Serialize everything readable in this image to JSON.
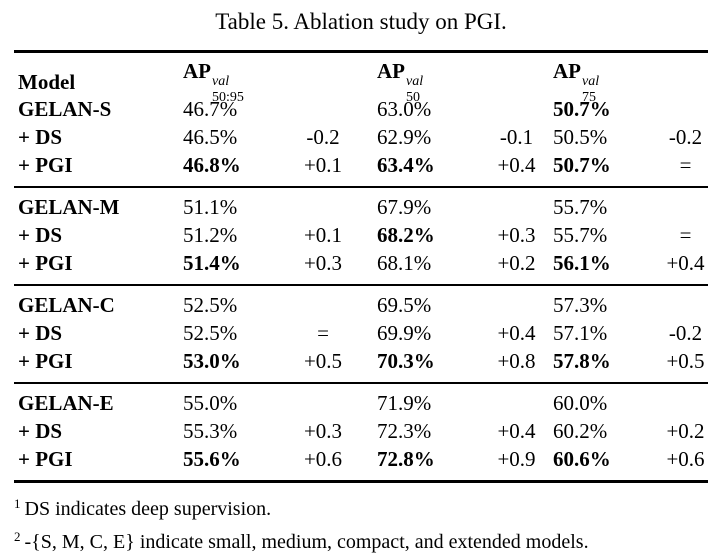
{
  "title": "Table 5. Ablation study on PGI.",
  "table": {
    "header": {
      "model": "Model",
      "cols": [
        {
          "base": "AP",
          "sup": "val",
          "sub": "50:95"
        },
        {
          "base": "AP",
          "sup": "val",
          "sub": "50"
        },
        {
          "base": "AP",
          "sup": "val",
          "sub": "75"
        }
      ]
    },
    "groups": [
      {
        "rows": [
          {
            "model": "GELAN-S",
            "ap5095": "46.7%",
            "d5095": "",
            "ap50": "63.0%",
            "d50": "",
            "ap75": "50.7%",
            "d75": ""
          },
          {
            "model": "+ DS",
            "ap5095": "46.5%",
            "d5095": "-0.2",
            "ap50": "62.9%",
            "d50": "-0.1",
            "ap75": "50.5%",
            "d75": "-0.2"
          },
          {
            "model": "+ PGI",
            "ap5095": "46.8%",
            "d5095": "+0.1",
            "ap50": "63.4%",
            "d50": "+0.4",
            "ap75": "50.7%",
            "d75": "="
          }
        ]
      },
      {
        "rows": [
          {
            "model": "GELAN-M",
            "ap5095": "51.1%",
            "d5095": "",
            "ap50": "67.9%",
            "d50": "",
            "ap75": "55.7%",
            "d75": ""
          },
          {
            "model": "+ DS",
            "ap5095": "51.2%",
            "d5095": "+0.1",
            "ap50": "68.2%",
            "d50": "+0.3",
            "ap75": "55.7%",
            "d75": "="
          },
          {
            "model": "+ PGI",
            "ap5095": "51.4%",
            "d5095": "+0.3",
            "ap50": "68.1%",
            "d50": "+0.2",
            "ap75": "56.1%",
            "d75": "+0.4"
          }
        ]
      },
      {
        "rows": [
          {
            "model": "GELAN-C",
            "ap5095": "52.5%",
            "d5095": "",
            "ap50": "69.5%",
            "d50": "",
            "ap75": "57.3%",
            "d75": ""
          },
          {
            "model": "+ DS",
            "ap5095": "52.5%",
            "d5095": "=",
            "ap50": "69.9%",
            "d50": "+0.4",
            "ap75": "57.1%",
            "d75": "-0.2"
          },
          {
            "model": "+ PGI",
            "ap5095": "53.0%",
            "d5095": "+0.5",
            "ap50": "70.3%",
            "d50": "+0.8",
            "ap75": "57.8%",
            "d75": "+0.5"
          }
        ]
      },
      {
        "rows": [
          {
            "model": "GELAN-E",
            "ap5095": "55.0%",
            "d5095": "",
            "ap50": "71.9%",
            "d50": "",
            "ap75": "60.0%",
            "d75": ""
          },
          {
            "model": "+ DS",
            "ap5095": "55.3%",
            "d5095": "+0.3",
            "ap50": "72.3%",
            "d50": "+0.4",
            "ap75": "60.2%",
            "d75": "+0.2"
          },
          {
            "model": "+ PGI",
            "ap5095": "55.6%",
            "d5095": "+0.6",
            "ap50": "72.8%",
            "d50": "+0.9",
            "ap75": "60.6%",
            "d75": "+0.6"
          }
        ]
      }
    ]
  },
  "footnotes": [
    {
      "marker": "1",
      "text": "DS indicates deep supervision."
    },
    {
      "marker": "2",
      "text": "-{S, M, C, E} indicate small, medium, compact, and extended models."
    }
  ]
}
